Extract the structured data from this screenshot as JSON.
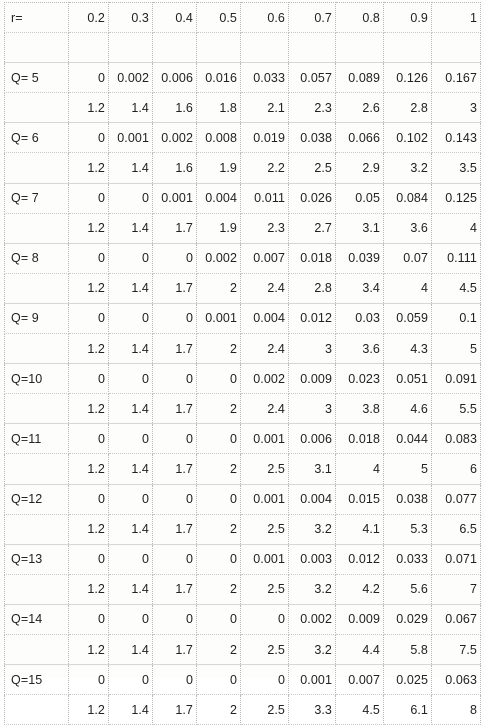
{
  "header": {
    "label": "r=",
    "values": [
      "0.2",
      "0.3",
      "0.4",
      "0.5",
      "0.6",
      "0.7",
      "0.8",
      "0.9",
      "1"
    ]
  },
  "rows": [
    {
      "label": "Q= 5",
      "values": [
        "0",
        "0.002",
        "0.006",
        "0.016",
        "0.033",
        "0.057",
        "0.089",
        "0.126",
        "0.167"
      ],
      "second": [
        "1.2",
        "1.4",
        "1.6",
        "1.8",
        "2.1",
        "2.3",
        "2.6",
        "2.8",
        "3"
      ]
    },
    {
      "label": "Q= 6",
      "values": [
        "0",
        "0.001",
        "0.002",
        "0.008",
        "0.019",
        "0.038",
        "0.066",
        "0.102",
        "0.143"
      ],
      "second": [
        "1.2",
        "1.4",
        "1.6",
        "1.9",
        "2.2",
        "2.5",
        "2.9",
        "3.2",
        "3.5"
      ]
    },
    {
      "label": "Q= 7",
      "values": [
        "0",
        "0",
        "0.001",
        "0.004",
        "0.011",
        "0.026",
        "0.05",
        "0.084",
        "0.125"
      ],
      "second": [
        "1.2",
        "1.4",
        "1.7",
        "1.9",
        "2.3",
        "2.7",
        "3.1",
        "3.6",
        "4"
      ]
    },
    {
      "label": "Q= 8",
      "values": [
        "0",
        "0",
        "0",
        "0.002",
        "0.007",
        "0.018",
        "0.039",
        "0.07",
        "0.111"
      ],
      "second": [
        "1.2",
        "1.4",
        "1.7",
        "2",
        "2.4",
        "2.8",
        "3.4",
        "4",
        "4.5"
      ]
    },
    {
      "label": "Q= 9",
      "values": [
        "0",
        "0",
        "0",
        "0.001",
        "0.004",
        "0.012",
        "0.03",
        "0.059",
        "0.1"
      ],
      "second": [
        "1.2",
        "1.4",
        "1.7",
        "2",
        "2.4",
        "3",
        "3.6",
        "4.3",
        "5"
      ]
    },
    {
      "label": "Q=10",
      "values": [
        "0",
        "0",
        "0",
        "0",
        "0.002",
        "0.009",
        "0.023",
        "0.051",
        "0.091"
      ],
      "second": [
        "1.2",
        "1.4",
        "1.7",
        "2",
        "2.4",
        "3",
        "3.8",
        "4.6",
        "5.5"
      ]
    },
    {
      "label": "Q=11",
      "values": [
        "0",
        "0",
        "0",
        "0",
        "0.001",
        "0.006",
        "0.018",
        "0.044",
        "0.083"
      ],
      "second": [
        "1.2",
        "1.4",
        "1.7",
        "2",
        "2.5",
        "3.1",
        "4",
        "5",
        "6"
      ]
    },
    {
      "label": "Q=12",
      "values": [
        "0",
        "0",
        "0",
        "0",
        "0.001",
        "0.004",
        "0.015",
        "0.038",
        "0.077"
      ],
      "second": [
        "1.2",
        "1.4",
        "1.7",
        "2",
        "2.5",
        "3.2",
        "4.1",
        "5.3",
        "6.5"
      ]
    },
    {
      "label": "Q=13",
      "values": [
        "0",
        "0",
        "0",
        "0",
        "0.001",
        "0.003",
        "0.012",
        "0.033",
        "0.071"
      ],
      "second": [
        "1.2",
        "1.4",
        "1.7",
        "2",
        "2.5",
        "3.2",
        "4.2",
        "5.6",
        "7"
      ]
    },
    {
      "label": "Q=14",
      "values": [
        "0",
        "0",
        "0",
        "0",
        "0",
        "0.002",
        "0.009",
        "0.029",
        "0.067"
      ],
      "second": [
        "1.2",
        "1.4",
        "1.7",
        "2",
        "2.5",
        "3.2",
        "4.4",
        "5.8",
        "7.5"
      ]
    },
    {
      "label": "Q=15",
      "values": [
        "0",
        "0",
        "0",
        "0",
        "0",
        "0.001",
        "0.007",
        "0.025",
        "0.063"
      ],
      "second": [
        "1.2",
        "1.4",
        "1.7",
        "2",
        "2.5",
        "3.3",
        "4.5",
        "6.1",
        "8"
      ]
    }
  ]
}
